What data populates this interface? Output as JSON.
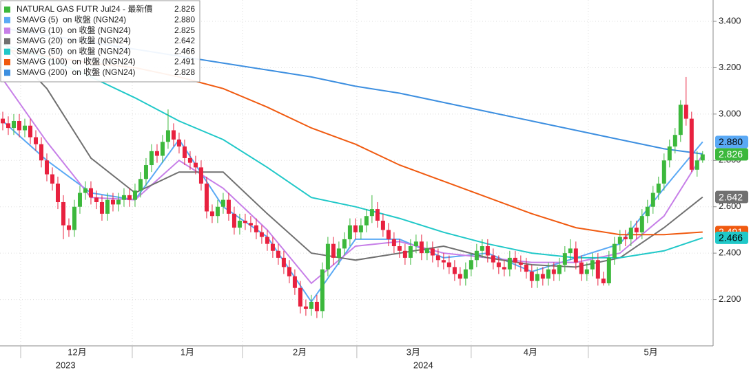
{
  "chart_data": {
    "type": "candlestick",
    "xlim": [
      -0.5,
      128.9
    ],
    "ylim": [
      2.0,
      3.492
    ],
    "yticks": [
      {
        "value": 2.2,
        "label": "2.200"
      },
      {
        "value": 2.4,
        "label": "2.400"
      },
      {
        "value": 2.6,
        "label": "2.600"
      },
      {
        "value": 2.8,
        "label": "2.800"
      },
      {
        "value": 3.0,
        "label": "3.000"
      },
      {
        "value": 3.2,
        "label": "3.200"
      },
      {
        "value": 3.4,
        "label": "3.400"
      }
    ],
    "xticks": [
      3.25,
      23.5,
      43.5,
      64.25,
      85,
      106.25
    ],
    "month_labels": [
      {
        "value": 13.5,
        "label": "12月"
      },
      {
        "value": 33.5,
        "label": "1月"
      },
      {
        "value": 53.9,
        "label": "2月"
      },
      {
        "value": 74.5,
        "label": "3月"
      },
      {
        "value": 95.75,
        "label": "4月"
      },
      {
        "value": 117.6,
        "label": "5月"
      }
    ],
    "year_labels": [
      {
        "value": 11.4,
        "label": "2023"
      },
      {
        "value": 76.3,
        "label": "2024"
      }
    ],
    "grid": true,
    "ma_x": [
      0,
      8,
      16,
      24,
      32,
      40,
      48,
      56,
      64,
      72,
      80,
      88,
      96,
      104,
      112,
      120,
      127
    ],
    "series": [
      {
        "name": "NATURAL GAS FUTR Jul24 - 最新價",
        "type": "candlestick",
        "up_color": "#3cb83c",
        "down_color": "#e8213f",
        "last": 2.826,
        "last_label": "2.826",
        "end_tag": true,
        "open": [
          2.98,
          2.96,
          2.94,
          2.97,
          2.93,
          2.95,
          2.9,
          2.87,
          2.8,
          2.74,
          2.7,
          2.62,
          2.52,
          2.5,
          2.6,
          2.66,
          2.68,
          2.64,
          2.62,
          2.57,
          2.63,
          2.61,
          2.63,
          2.65,
          2.63,
          2.67,
          2.72,
          2.78,
          2.84,
          2.82,
          2.88,
          2.93,
          2.89,
          2.86,
          2.81,
          2.79,
          2.77,
          2.7,
          2.58,
          2.56,
          2.6,
          2.63,
          2.57,
          2.51,
          2.54,
          2.53,
          2.52,
          2.49,
          2.47,
          2.44,
          2.41,
          2.38,
          2.34,
          2.3,
          2.25,
          2.17,
          2.16,
          2.19,
          2.15,
          2.33,
          2.44,
          2.38,
          2.42,
          2.46,
          2.52,
          2.49,
          2.52,
          2.56,
          2.59,
          2.54,
          2.5,
          2.46,
          2.43,
          2.41,
          2.38,
          2.43,
          2.45,
          2.4,
          2.42,
          2.39,
          2.37,
          2.36,
          2.34,
          2.31,
          2.29,
          2.33,
          2.37,
          2.41,
          2.43,
          2.39,
          2.36,
          2.34,
          2.33,
          2.38,
          2.36,
          2.35,
          2.32,
          2.28,
          2.31,
          2.29,
          2.33,
          2.31,
          2.35,
          2.4,
          2.42,
          2.36,
          2.31,
          2.33,
          2.37,
          2.29,
          2.27,
          2.38,
          2.44,
          2.47,
          2.46,
          2.51,
          2.49,
          2.56,
          2.6,
          2.66,
          2.7,
          2.8,
          2.86,
          2.91,
          3.04,
          2.98,
          2.76,
          2.8
        ],
        "high": [
          3.01,
          2.99,
          3.0,
          3.0,
          2.98,
          2.98,
          2.93,
          2.9,
          2.83,
          2.77,
          2.73,
          2.65,
          2.55,
          2.63,
          2.69,
          2.71,
          2.71,
          2.67,
          2.65,
          2.66,
          2.66,
          2.66,
          2.68,
          2.68,
          2.7,
          2.75,
          2.81,
          2.87,
          2.87,
          2.91,
          3.02,
          2.96,
          2.92,
          2.89,
          2.84,
          2.82,
          2.8,
          2.73,
          2.61,
          2.63,
          2.66,
          2.66,
          2.6,
          2.57,
          2.57,
          2.56,
          2.55,
          2.52,
          2.5,
          2.47,
          2.44,
          2.41,
          2.37,
          2.33,
          2.28,
          2.2,
          2.22,
          2.22,
          2.36,
          2.47,
          2.47,
          2.45,
          2.49,
          2.55,
          2.55,
          2.55,
          2.59,
          2.65,
          2.62,
          2.57,
          2.53,
          2.49,
          2.46,
          2.44,
          2.46,
          2.48,
          2.48,
          2.45,
          2.45,
          2.42,
          2.4,
          2.39,
          2.37,
          2.34,
          2.36,
          2.4,
          2.44,
          2.46,
          2.46,
          2.42,
          2.39,
          2.37,
          2.41,
          2.41,
          2.39,
          2.38,
          2.35,
          2.34,
          2.34,
          2.36,
          2.36,
          2.38,
          2.43,
          2.46,
          2.45,
          2.39,
          2.36,
          2.4,
          2.4,
          2.32,
          2.41,
          2.47,
          2.5,
          2.5,
          2.54,
          2.54,
          2.59,
          2.63,
          2.69,
          2.73,
          2.83,
          2.89,
          2.94,
          3.06,
          3.16,
          3.01,
          2.84,
          2.84
        ],
        "low": [
          2.93,
          2.91,
          2.91,
          2.9,
          2.9,
          2.87,
          2.84,
          2.77,
          2.71,
          2.67,
          2.59,
          2.46,
          2.47,
          2.47,
          2.57,
          2.63,
          2.61,
          2.59,
          2.54,
          2.54,
          2.58,
          2.58,
          2.6,
          2.6,
          2.6,
          2.64,
          2.69,
          2.75,
          2.79,
          2.79,
          2.85,
          2.86,
          2.83,
          2.78,
          2.76,
          2.74,
          2.67,
          2.55,
          2.53,
          2.53,
          2.57,
          2.54,
          2.48,
          2.48,
          2.5,
          2.49,
          2.46,
          2.44,
          2.41,
          2.38,
          2.35,
          2.31,
          2.27,
          2.22,
          2.14,
          2.13,
          2.13,
          2.12,
          2.12,
          2.3,
          2.35,
          2.35,
          2.39,
          2.43,
          2.46,
          2.46,
          2.49,
          2.53,
          2.51,
          2.47,
          2.43,
          2.4,
          2.38,
          2.35,
          2.35,
          2.4,
          2.37,
          2.37,
          2.36,
          2.34,
          2.33,
          2.31,
          2.28,
          2.26,
          2.26,
          2.3,
          2.34,
          2.38,
          2.36,
          2.33,
          2.31,
          2.3,
          2.3,
          2.33,
          2.32,
          2.29,
          2.25,
          2.25,
          2.26,
          2.26,
          2.28,
          2.28,
          2.32,
          2.37,
          2.33,
          2.28,
          2.28,
          2.3,
          2.26,
          2.26,
          2.26,
          2.35,
          2.41,
          2.43,
          2.43,
          2.46,
          2.46,
          2.53,
          2.57,
          2.63,
          2.67,
          2.77,
          2.83,
          2.88,
          2.95,
          2.75,
          2.73,
          2.79
        ],
        "close": [
          2.96,
          2.94,
          2.97,
          2.93,
          2.95,
          2.9,
          2.87,
          2.8,
          2.74,
          2.7,
          2.62,
          2.52,
          2.5,
          2.6,
          2.66,
          2.68,
          2.64,
          2.62,
          2.57,
          2.63,
          2.61,
          2.63,
          2.65,
          2.63,
          2.67,
          2.72,
          2.78,
          2.84,
          2.82,
          2.88,
          2.93,
          2.89,
          2.86,
          2.81,
          2.79,
          2.77,
          2.7,
          2.58,
          2.56,
          2.6,
          2.63,
          2.57,
          2.51,
          2.54,
          2.53,
          2.52,
          2.49,
          2.47,
          2.44,
          2.41,
          2.38,
          2.34,
          2.3,
          2.25,
          2.17,
          2.16,
          2.19,
          2.15,
          2.33,
          2.44,
          2.38,
          2.42,
          2.46,
          2.52,
          2.49,
          2.52,
          2.56,
          2.59,
          2.54,
          2.5,
          2.46,
          2.43,
          2.41,
          2.38,
          2.43,
          2.45,
          2.4,
          2.42,
          2.39,
          2.37,
          2.36,
          2.34,
          2.31,
          2.29,
          2.33,
          2.37,
          2.41,
          2.43,
          2.39,
          2.36,
          2.34,
          2.33,
          2.38,
          2.36,
          2.35,
          2.32,
          2.28,
          2.31,
          2.29,
          2.33,
          2.31,
          2.35,
          2.4,
          2.42,
          2.36,
          2.31,
          2.33,
          2.37,
          2.29,
          2.27,
          2.38,
          2.44,
          2.47,
          2.46,
          2.51,
          2.49,
          2.56,
          2.6,
          2.66,
          2.7,
          2.8,
          2.86,
          2.91,
          3.04,
          2.98,
          2.76,
          2.8,
          2.826
        ]
      },
      {
        "name": "SMAVG (5)  on 收盤 (NGN24)",
        "type": "line",
        "color": "#5aa9f5",
        "last": 2.88,
        "last_label": "2.880",
        "end_tag": true,
        "values": [
          2.97,
          2.8,
          2.66,
          2.63,
          2.89,
          2.6,
          2.47,
          2.19,
          2.46,
          2.46,
          2.38,
          2.4,
          2.32,
          2.38,
          2.44,
          2.68,
          2.88
        ]
      },
      {
        "name": "SMAVG (10)  on 收盤 (NGN24)",
        "type": "line",
        "color": "#c77fe8",
        "last": 2.825,
        "last_label": "2.825",
        "end_tag": false,
        "values": [
          3.15,
          2.88,
          2.64,
          2.63,
          2.8,
          2.68,
          2.5,
          2.27,
          2.43,
          2.45,
          2.4,
          2.38,
          2.36,
          2.36,
          2.4,
          2.56,
          2.825
        ]
      },
      {
        "name": "SMAVG (20)  on 收盤 (NGN24)",
        "type": "line",
        "color": "#707070",
        "last": 2.642,
        "last_label": "2.642",
        "end_tag": true,
        "values": [
          3.31,
          3.11,
          2.81,
          2.66,
          2.75,
          2.75,
          2.57,
          2.4,
          2.37,
          2.4,
          2.43,
          2.38,
          2.35,
          2.34,
          2.38,
          2.51,
          2.642
        ]
      },
      {
        "name": "SMAVG (100)  on 收盤 (NGN24)",
        "type": "line",
        "color": "#f05a10",
        "last": 2.491,
        "last_label": "2.491",
        "end_tag": true,
        "values": [
          3.28,
          3.25,
          3.22,
          3.2,
          3.16,
          3.11,
          3.03,
          2.94,
          2.87,
          2.78,
          2.71,
          2.64,
          2.57,
          2.51,
          2.48,
          2.48,
          2.491
        ]
      },
      {
        "name": "SMAVG (50)  on 收盤 (NGN24)",
        "type": "line",
        "color": "#20c8c8",
        "last": 2.466,
        "last_label": "2.466",
        "end_tag": true,
        "values": [
          3.3,
          3.24,
          3.16,
          3.07,
          2.97,
          2.89,
          2.77,
          2.64,
          2.6,
          2.55,
          2.49,
          2.44,
          2.4,
          2.38,
          2.38,
          2.41,
          2.466
        ]
      },
      {
        "name": "SMAVG (200)  on 收盤 (NGN24)",
        "type": "line",
        "color": "#3d8fe0",
        "last": 2.828,
        "last_label": "2.828",
        "end_tag": false,
        "values": [
          3.37,
          3.34,
          3.31,
          3.28,
          3.25,
          3.22,
          3.19,
          3.16,
          3.12,
          3.09,
          3.05,
          3.01,
          2.97,
          2.93,
          2.89,
          2.85,
          2.828
        ]
      }
    ],
    "legend_order": [
      0,
      1,
      2,
      3,
      5,
      4,
      6
    ]
  }
}
